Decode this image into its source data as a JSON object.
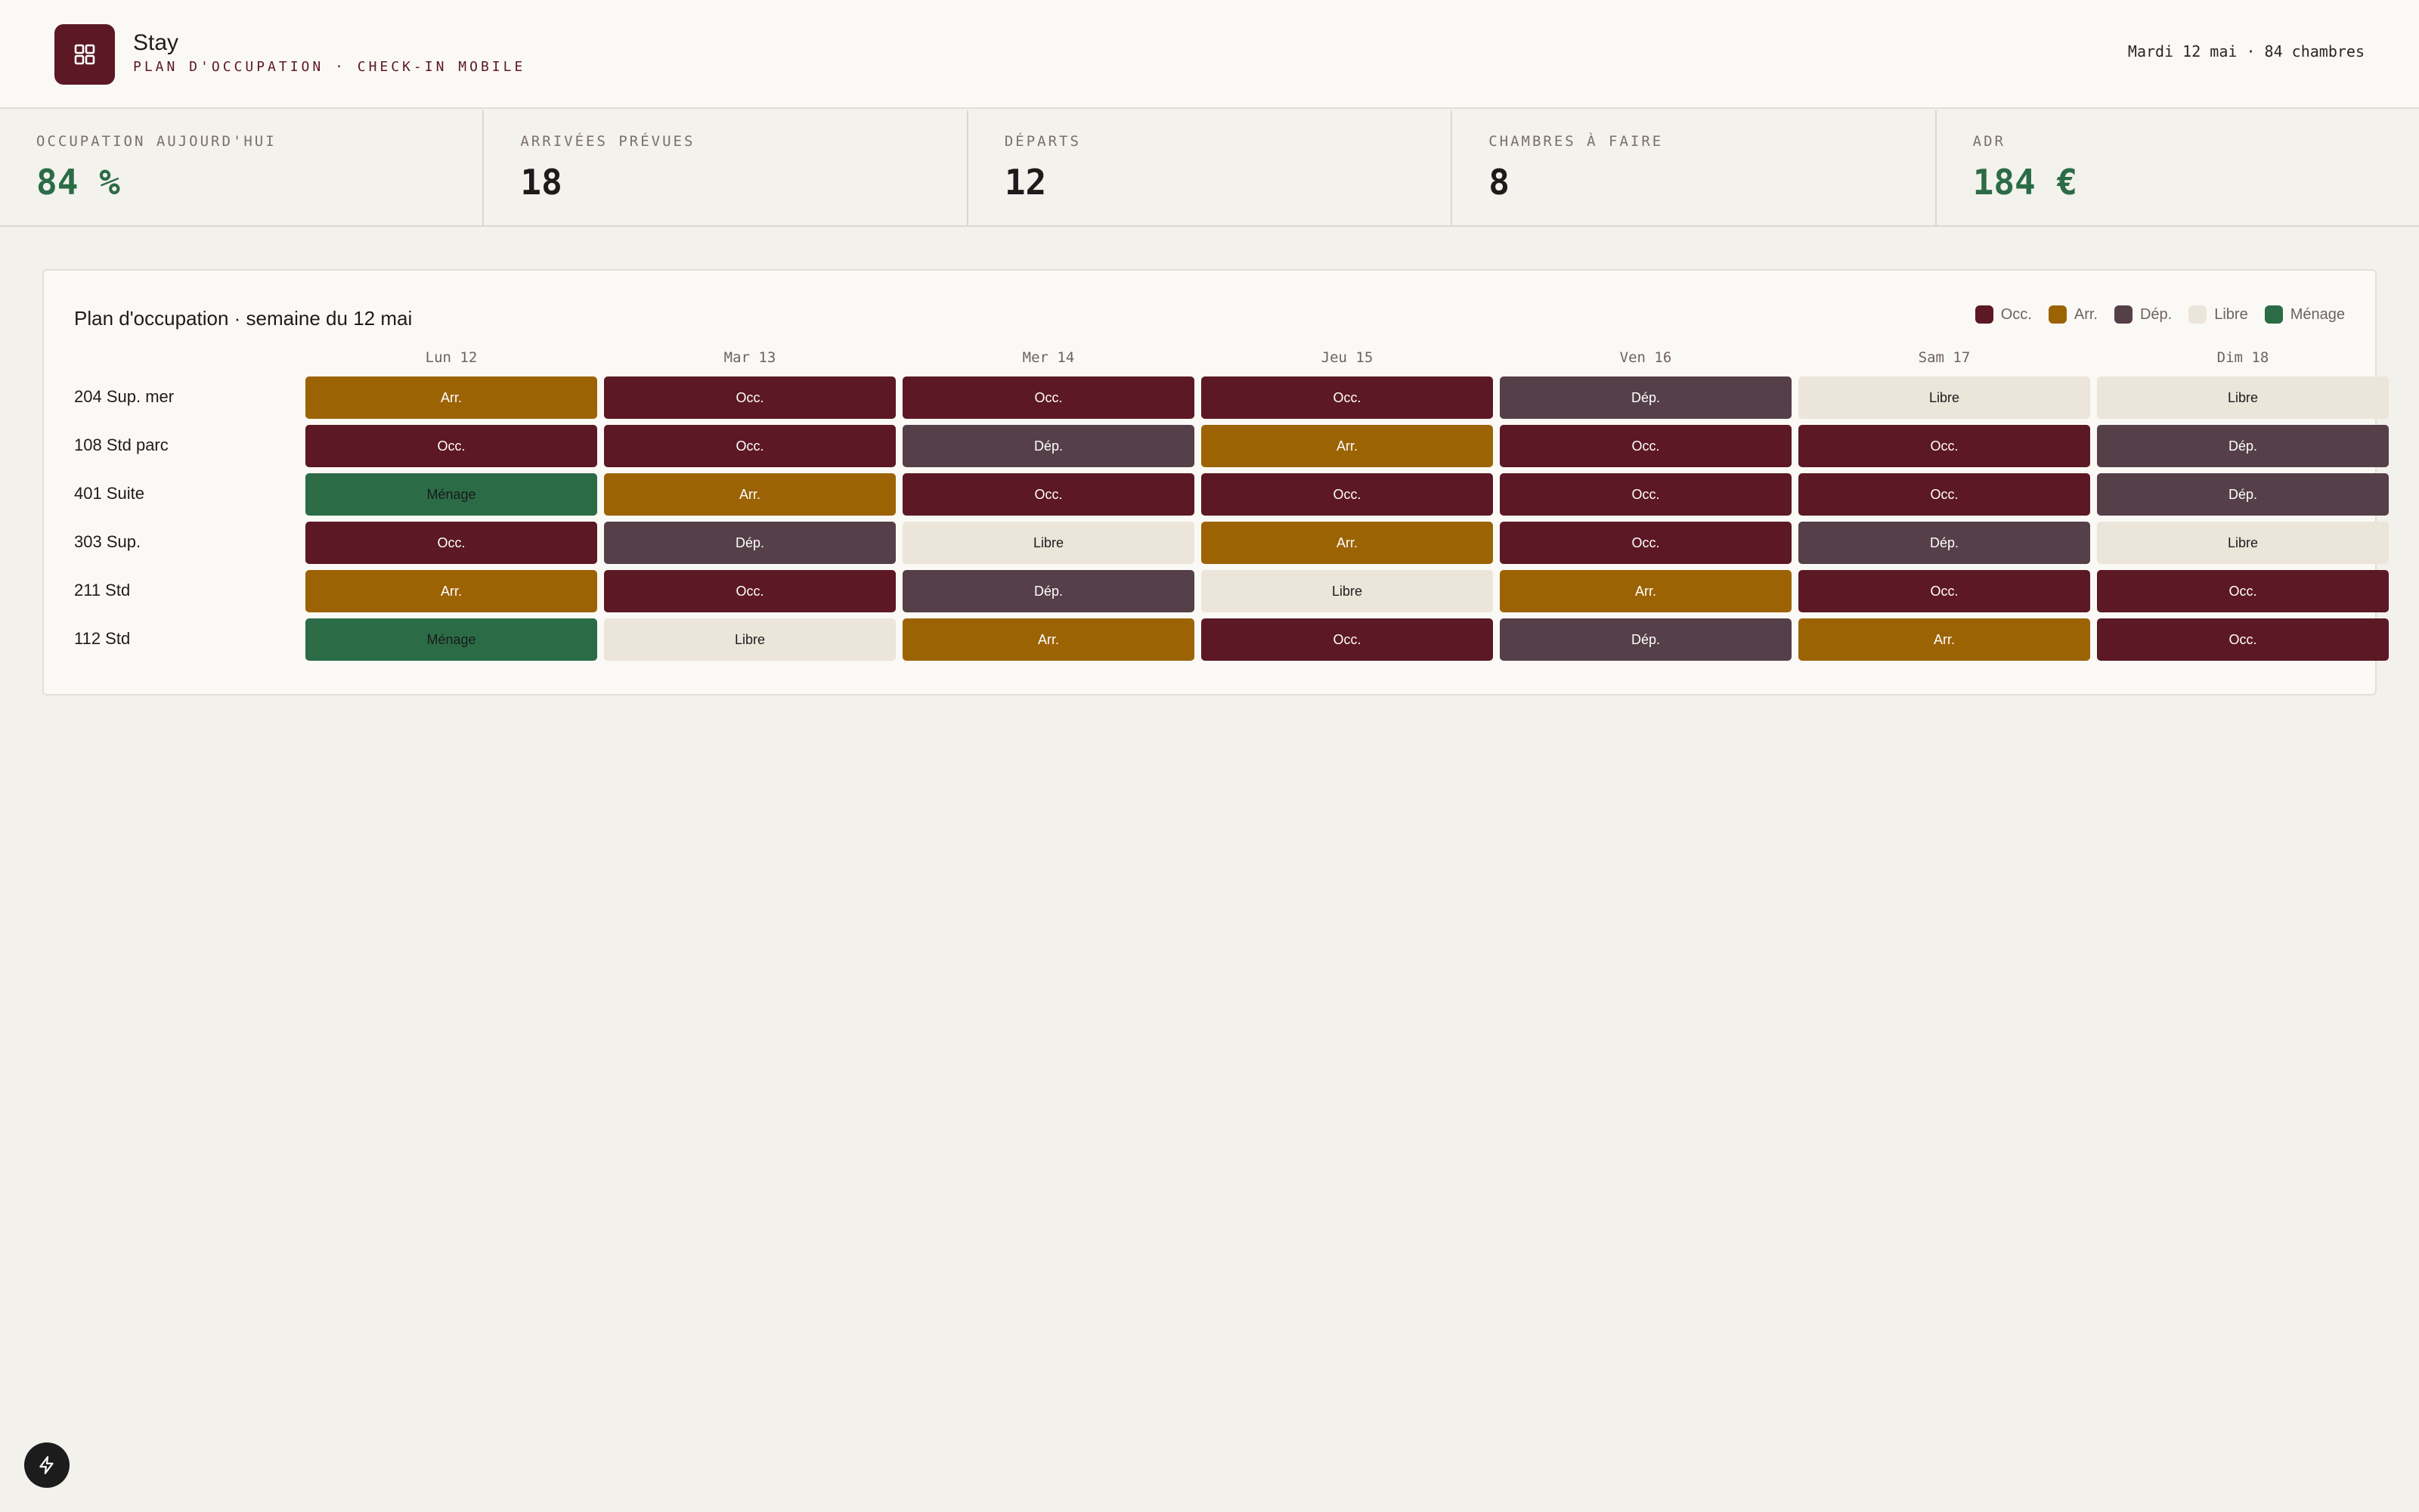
{
  "header": {
    "brand": "Stay",
    "subtitle": "PLAN D'OCCUPATION · CHECK-IN MOBILE",
    "date": "Mardi 12 mai · 84 chambres",
    "logo_icon": "grid-icon"
  },
  "kpis": [
    {
      "label": "OCCUPATION AUJOURD'HUI",
      "value": "84 %",
      "accent": "#2b6c47"
    },
    {
      "label": "ARRIVÉES PRÉVUES",
      "value": "18"
    },
    {
      "label": "DÉPARTS",
      "value": "12"
    },
    {
      "label": "CHAMBRES À FAIRE",
      "value": "8"
    },
    {
      "label": "ADR",
      "value": "184 €",
      "accent": "#2b6c47"
    }
  ],
  "plan": {
    "title": "Plan d'occupation · semaine du 12 mai",
    "legend": [
      {
        "key": "occ",
        "label": "Occ.",
        "color": "#5c1824"
      },
      {
        "key": "arr",
        "label": "Arr.",
        "color": "#9c6305"
      },
      {
        "key": "dep",
        "label": "Dép.",
        "color": "#553f48"
      },
      {
        "key": "libre",
        "label": "Libre",
        "color": "#ebe5da"
      },
      {
        "key": "menage",
        "label": "Ménage",
        "color": "#2b6c47"
      }
    ],
    "days": [
      "Lun 12",
      "Mar 13",
      "Mer 14",
      "Jeu 15",
      "Ven 16",
      "Sam 17",
      "Dim 18"
    ],
    "rooms": [
      {
        "name": "204 Sup. mer",
        "cells": [
          "arr",
          "occ",
          "occ",
          "occ",
          "dep",
          "libre",
          "libre"
        ]
      },
      {
        "name": "108 Std parc",
        "cells": [
          "occ",
          "occ",
          "dep",
          "arr",
          "occ",
          "occ",
          "dep"
        ]
      },
      {
        "name": "401 Suite",
        "cells": [
          "menage",
          "arr",
          "occ",
          "occ",
          "occ",
          "occ",
          "dep"
        ]
      },
      {
        "name": "303 Sup.",
        "cells": [
          "occ",
          "dep",
          "libre",
          "arr",
          "occ",
          "dep",
          "libre"
        ]
      },
      {
        "name": "211 Std",
        "cells": [
          "arr",
          "occ",
          "dep",
          "libre",
          "arr",
          "occ",
          "occ"
        ]
      },
      {
        "name": "112 Std",
        "cells": [
          "menage",
          "libre",
          "arr",
          "occ",
          "dep",
          "arr",
          "occ"
        ]
      }
    ],
    "status_labels": {
      "occ": "Occ.",
      "arr": "Arr.",
      "dep": "Dép.",
      "libre": "Libre",
      "menage": "Ménage"
    }
  },
  "fab_icon": "bolt-icon"
}
